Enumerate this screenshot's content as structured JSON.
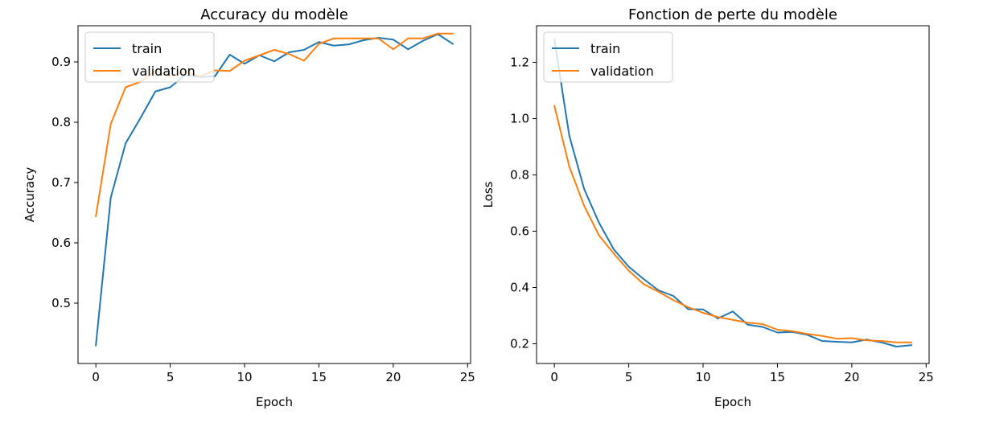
{
  "chart_data": [
    {
      "type": "line",
      "title": "Accuracy du modèle",
      "xlabel": "Epoch",
      "ylabel": "Accuracy",
      "xlim": [
        -1.2,
        25.2
      ],
      "ylim": [
        0.4,
        0.96
      ],
      "xticks": [
        0,
        5,
        10,
        15,
        20,
        25
      ],
      "yticks": [
        0.5,
        0.6,
        0.7,
        0.8,
        0.9
      ],
      "ytick_labels": [
        "0.5",
        "0.6",
        "0.7",
        "0.8",
        "0.9"
      ],
      "grid": false,
      "legend_position": "top-left",
      "x": [
        0,
        1,
        2,
        3,
        4,
        5,
        6,
        7,
        8,
        9,
        10,
        11,
        12,
        13,
        14,
        15,
        16,
        17,
        18,
        19,
        20,
        21,
        22,
        23,
        24
      ],
      "series": [
        {
          "name": "train",
          "color": "#1f77b4",
          "values": [
            0.43,
            0.675,
            0.765,
            0.807,
            0.851,
            0.858,
            0.878,
            0.875,
            0.876,
            0.912,
            0.897,
            0.911,
            0.901,
            0.916,
            0.92,
            0.933,
            0.927,
            0.929,
            0.936,
            0.94,
            0.937,
            0.921,
            0.935,
            0.946,
            0.93
          ]
        },
        {
          "name": "validation",
          "color": "#ff7f0e",
          "values": [
            0.644,
            0.797,
            0.858,
            0.867,
            0.885,
            0.876,
            0.884,
            0.876,
            0.886,
            0.885,
            0.902,
            0.911,
            0.92,
            0.913,
            0.902,
            0.93,
            0.939,
            0.939,
            0.939,
            0.939,
            0.921,
            0.939,
            0.939,
            0.947,
            0.947
          ]
        }
      ]
    },
    {
      "type": "line",
      "title": "Fonction de perte du modèle",
      "xlabel": "Epoch",
      "ylabel": "Loss",
      "xlim": [
        -1.2,
        25.2
      ],
      "ylim": [
        0.13,
        1.33
      ],
      "xticks": [
        0,
        5,
        10,
        15,
        20,
        25
      ],
      "yticks": [
        0.2,
        0.4,
        0.6,
        0.8,
        1.0,
        1.2
      ],
      "ytick_labels": [
        "0.2",
        "0.4",
        "0.6",
        "0.8",
        "1.0",
        "1.2"
      ],
      "grid": false,
      "legend_position": "top-left",
      "x": [
        0,
        1,
        2,
        3,
        4,
        5,
        6,
        7,
        8,
        9,
        10,
        11,
        12,
        13,
        14,
        15,
        16,
        17,
        18,
        19,
        20,
        21,
        22,
        23,
        24
      ],
      "series": [
        {
          "name": "train",
          "color": "#1f77b4",
          "values": [
            1.28,
            0.94,
            0.75,
            0.63,
            0.535,
            0.474,
            0.43,
            0.39,
            0.37,
            0.323,
            0.322,
            0.29,
            0.315,
            0.268,
            0.26,
            0.24,
            0.242,
            0.232,
            0.21,
            0.207,
            0.205,
            0.215,
            0.205,
            0.19,
            0.195
          ]
        },
        {
          "name": "validation",
          "color": "#ff7f0e",
          "values": [
            1.045,
            0.83,
            0.69,
            0.585,
            0.52,
            0.46,
            0.412,
            0.385,
            0.355,
            0.33,
            0.31,
            0.295,
            0.285,
            0.275,
            0.27,
            0.25,
            0.245,
            0.235,
            0.228,
            0.218,
            0.22,
            0.212,
            0.21,
            0.205,
            0.205
          ]
        }
      ]
    }
  ]
}
